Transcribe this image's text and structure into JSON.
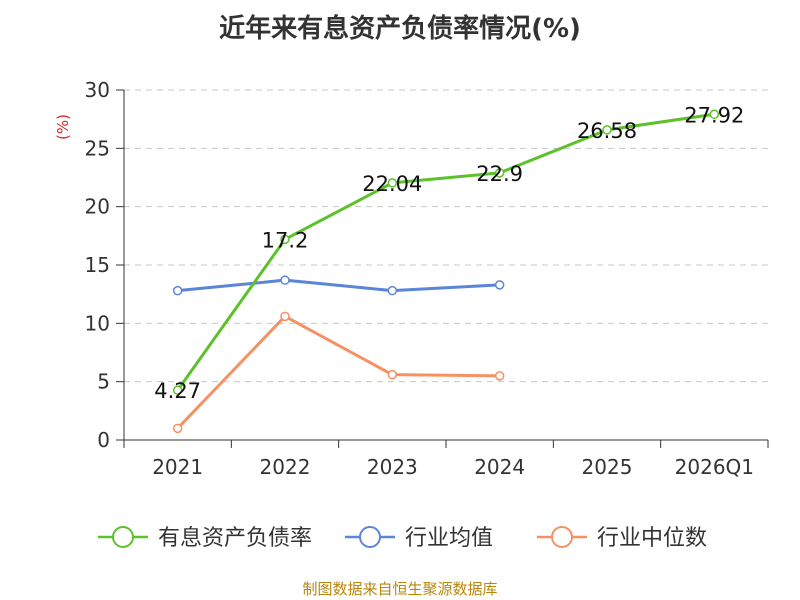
{
  "chart_data": {
    "type": "line",
    "title": "近年来有息资产负债率情况(%)",
    "ylabel": "(%)",
    "xlabel": "",
    "categories": [
      "2021",
      "2022",
      "2023",
      "2024",
      "2025",
      "2026Q1"
    ],
    "ylim": [
      0,
      30
    ],
    "yticks": [
      0,
      5,
      10,
      15,
      20,
      25,
      30
    ],
    "grid": true,
    "legend_position": "bottom",
    "series": [
      {
        "name": "有息资产负债率",
        "color": "#5cc12b",
        "values": [
          4.27,
          17.2,
          22.04,
          22.9,
          26.58,
          27.92
        ],
        "labels": [
          "4.27",
          "17.2",
          "22.04",
          "22.9",
          "26.58",
          "27.92"
        ],
        "show_labels": true
      },
      {
        "name": "行业均值",
        "color": "#5b85d8",
        "values": [
          12.8,
          13.7,
          12.8,
          13.3,
          null,
          null
        ],
        "show_labels": false
      },
      {
        "name": "行业中位数",
        "color": "#f59164",
        "values": [
          1.0,
          10.6,
          5.6,
          5.5,
          null,
          null
        ],
        "show_labels": false
      }
    ]
  },
  "footer": {
    "source": "制图数据来自恒生聚源数据库"
  }
}
